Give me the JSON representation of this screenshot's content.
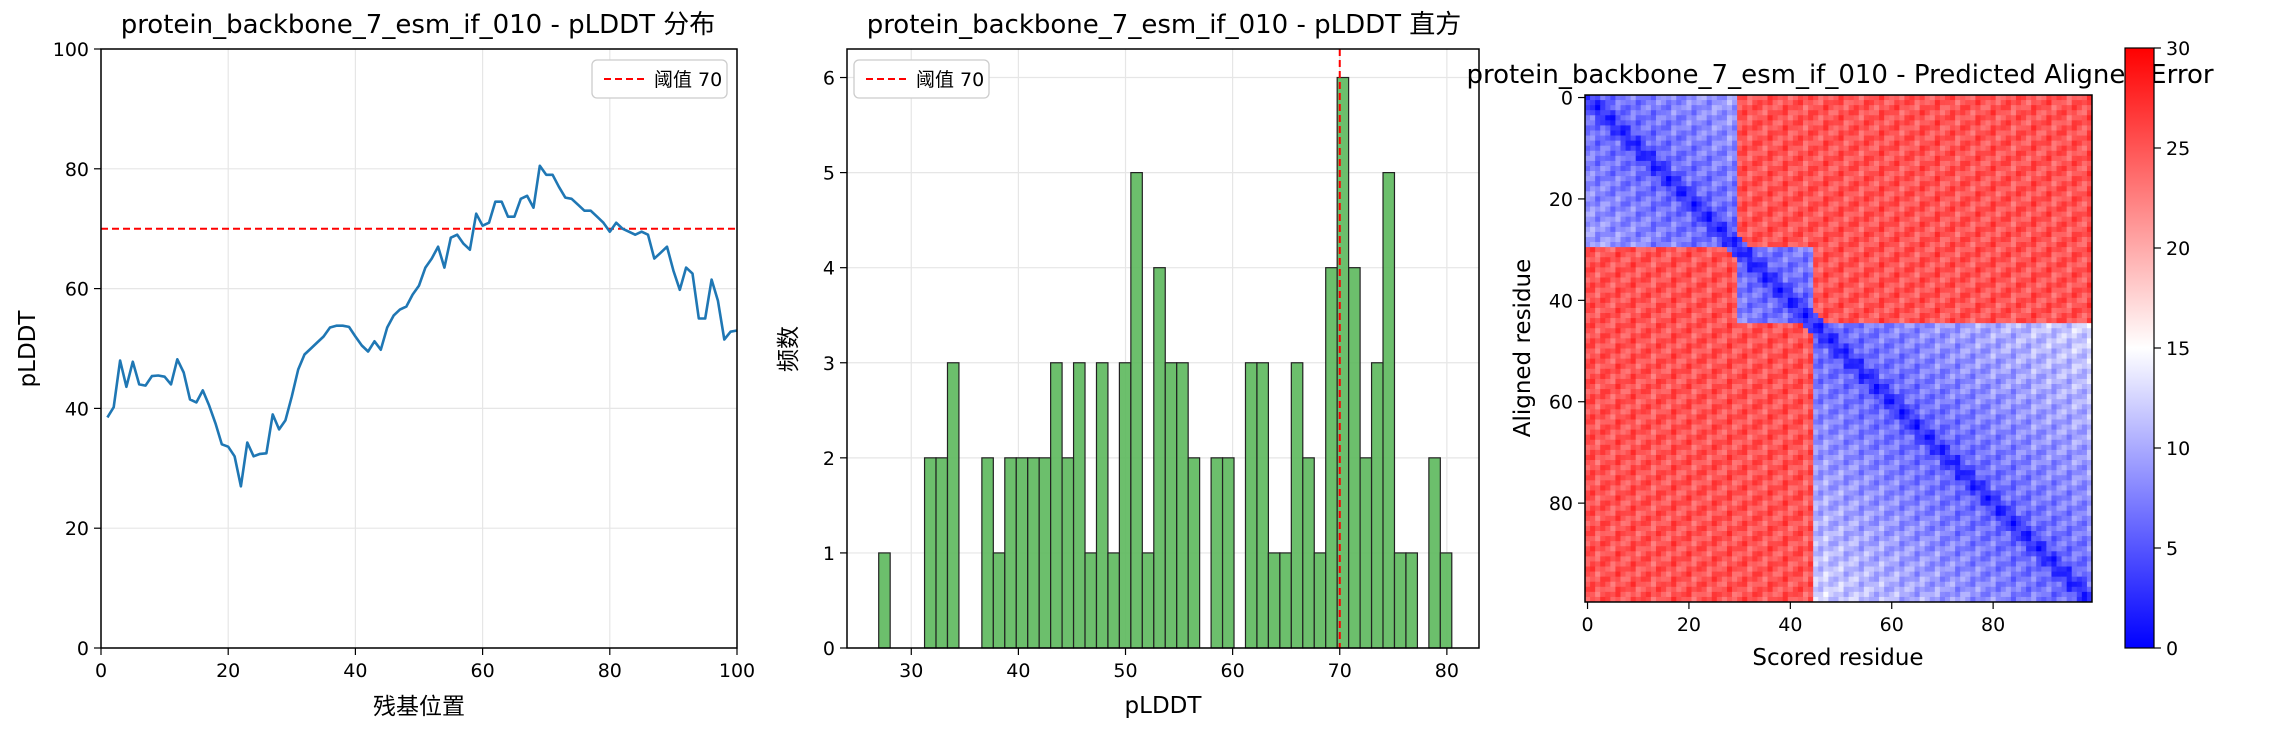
{
  "chart_data": [
    {
      "type": "line",
      "title": "protein_backbone_7_esm_if_010 - pLDDT 分布",
      "xlabel": "残基位置",
      "ylabel": "pLDDT",
      "xlim": [
        0,
        100
      ],
      "ylim": [
        0,
        100
      ],
      "xticks": [
        "0",
        "20",
        "40",
        "60",
        "80",
        "100"
      ],
      "yticks": [
        "0",
        "20",
        "40",
        "60",
        "80",
        "100"
      ],
      "grid": true,
      "legend": {
        "placement": "top-right",
        "entries": [
          "阈值 70"
        ]
      },
      "threshold": {
        "value": 70,
        "label": "阈值 70",
        "color": "#ff0000"
      },
      "series": [
        {
          "color": "#1f77b4",
          "x": [
            1,
            2,
            3,
            4,
            5,
            6,
            7,
            8,
            9,
            10,
            11,
            12,
            13,
            14,
            15,
            16,
            17,
            18,
            19,
            20,
            21,
            22,
            23,
            24,
            25,
            26,
            27,
            28,
            29,
            30,
            31,
            32,
            33,
            34,
            35,
            36,
            37,
            38,
            39,
            40,
            41,
            42,
            43,
            44,
            45,
            46,
            47,
            48,
            49,
            50,
            51,
            52,
            53,
            54,
            55,
            56,
            57,
            58,
            59,
            60,
            61,
            62,
            63,
            64,
            65,
            66,
            67,
            68,
            69,
            70,
            71,
            72,
            73,
            74,
            75,
            76,
            77,
            78,
            79,
            80,
            81,
            82,
            83,
            84,
            85,
            86,
            87,
            88,
            89,
            90,
            91,
            92,
            93,
            94,
            95,
            96,
            97,
            98,
            99,
            100
          ],
          "values": [
            38.5,
            40.2,
            48.0,
            43.6,
            47.8,
            44.0,
            43.8,
            45.4,
            45.5,
            45.3,
            44.0,
            48.2,
            46.0,
            41.5,
            41.0,
            43.0,
            40.5,
            37.5,
            34.0,
            33.6,
            32.0,
            27.0,
            34.3,
            32.0,
            32.4,
            32.5,
            39.0,
            36.5,
            38.0,
            42.0,
            46.5,
            49.0,
            50.0,
            51.0,
            52.0,
            53.5,
            53.8,
            53.8,
            53.6,
            52.0,
            50.5,
            49.5,
            51.2,
            49.8,
            53.5,
            55.5,
            56.5,
            57.0,
            59.0,
            60.5,
            63.5,
            65.0,
            67.0,
            63.5,
            68.5,
            69.0,
            67.5,
            66.5,
            72.5,
            70.5,
            71.0,
            74.5,
            74.5,
            72.0,
            72.0,
            75.0,
            75.5,
            73.5,
            80.5,
            79.0,
            79.0,
            77.0,
            75.2,
            75.0,
            74.0,
            73.0,
            73.0,
            72.0,
            71.0,
            69.5,
            71.0,
            70.0,
            69.5,
            69.0,
            69.5,
            69.0,
            65.0,
            66.0,
            67.0,
            63.0,
            59.8,
            63.5,
            62.5,
            55.0,
            55.0,
            61.5,
            58.0,
            51.5,
            52.8,
            53.0
          ]
        }
      ]
    },
    {
      "type": "bar",
      "subtype": "histogram",
      "title": "protein_backbone_7_esm_if_010 - pLDDT 直方",
      "xlabel": "pLDDT",
      "ylabel": "频数",
      "xlim": [
        24,
        83
      ],
      "ylim": [
        0,
        6.3
      ],
      "xticks": [
        "30",
        "40",
        "50",
        "60",
        "70",
        "80"
      ],
      "yticks": [
        "0",
        "1",
        "2",
        "3",
        "4",
        "5",
        "6"
      ],
      "grid": true,
      "legend": {
        "placement": "top-left",
        "entries": [
          "阈值 70"
        ]
      },
      "threshold": {
        "value": 70,
        "label": "阈值 70",
        "color": "#ff0000"
      },
      "bin_width": 1.07,
      "bar_color": "#5cb85c",
      "bins": [
        {
          "x": 26.96,
          "count": 1
        },
        {
          "x": 28.03,
          "count": 0
        },
        {
          "x": 29.1,
          "count": 0
        },
        {
          "x": 30.17,
          "count": 0
        },
        {
          "x": 31.24,
          "count": 2
        },
        {
          "x": 32.31,
          "count": 2
        },
        {
          "x": 33.38,
          "count": 3
        },
        {
          "x": 34.45,
          "count": 0
        },
        {
          "x": 35.52,
          "count": 0
        },
        {
          "x": 36.59,
          "count": 2
        },
        {
          "x": 37.66,
          "count": 1
        },
        {
          "x": 38.73,
          "count": 2
        },
        {
          "x": 39.8,
          "count": 2
        },
        {
          "x": 40.87,
          "count": 2
        },
        {
          "x": 41.94,
          "count": 2
        },
        {
          "x": 43.01,
          "count": 3
        },
        {
          "x": 44.08,
          "count": 2
        },
        {
          "x": 45.15,
          "count": 3
        },
        {
          "x": 46.22,
          "count": 1
        },
        {
          "x": 47.29,
          "count": 3
        },
        {
          "x": 48.36,
          "count": 1
        },
        {
          "x": 49.43,
          "count": 3
        },
        {
          "x": 50.5,
          "count": 5
        },
        {
          "x": 51.57,
          "count": 1
        },
        {
          "x": 52.64,
          "count": 4
        },
        {
          "x": 53.71,
          "count": 3
        },
        {
          "x": 54.78,
          "count": 3
        },
        {
          "x": 55.85,
          "count": 2
        },
        {
          "x": 56.92,
          "count": 0
        },
        {
          "x": 57.99,
          "count": 2
        },
        {
          "x": 59.06,
          "count": 2
        },
        {
          "x": 60.13,
          "count": 0
        },
        {
          "x": 61.2,
          "count": 3
        },
        {
          "x": 62.27,
          "count": 3
        },
        {
          "x": 63.34,
          "count": 1
        },
        {
          "x": 64.41,
          "count": 1
        },
        {
          "x": 65.48,
          "count": 3
        },
        {
          "x": 66.55,
          "count": 2
        },
        {
          "x": 67.62,
          "count": 1
        },
        {
          "x": 68.69,
          "count": 4
        },
        {
          "x": 69.76,
          "count": 6
        },
        {
          "x": 70.83,
          "count": 4
        },
        {
          "x": 71.9,
          "count": 2
        },
        {
          "x": 72.97,
          "count": 3
        },
        {
          "x": 74.04,
          "count": 5
        },
        {
          "x": 75.11,
          "count": 1
        },
        {
          "x": 76.18,
          "count": 1
        },
        {
          "x": 77.25,
          "count": 0
        },
        {
          "x": 78.32,
          "count": 2
        },
        {
          "x": 79.39,
          "count": 1
        }
      ]
    },
    {
      "type": "heatmap",
      "title": "protein_backbone_7_esm_if_010 - Predicted Aligned Error",
      "xlabel": "Scored residue",
      "ylabel": "Aligned residue",
      "size": 100,
      "xticks": [
        "0",
        "20",
        "40",
        "60",
        "80"
      ],
      "yticks": [
        "0",
        "20",
        "40",
        "60",
        "80"
      ],
      "colormap": "bwr",
      "colorbar": {
        "range": [
          0,
          30
        ],
        "ticks": [
          "0",
          "5",
          "10",
          "15",
          "20",
          "25",
          "30"
        ]
      },
      "domains": [
        [
          0,
          30
        ],
        [
          30,
          45
        ],
        [
          45,
          100
        ]
      ],
      "domain_error": {
        "diagonal_band": 2,
        "within_domain": 6,
        "cross_domain": 25
      }
    }
  ]
}
